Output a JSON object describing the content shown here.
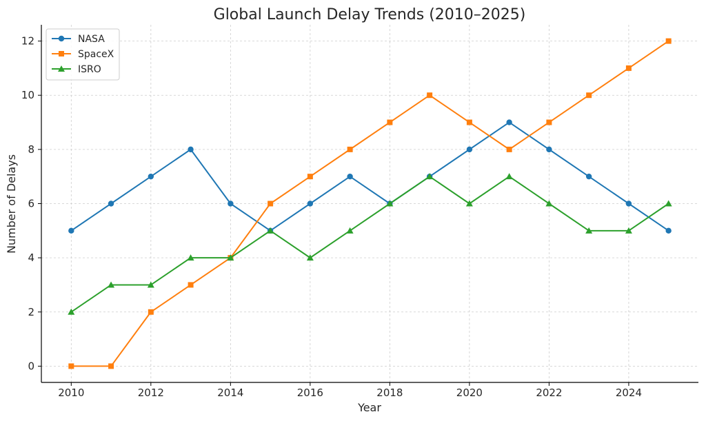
{
  "chart_data": {
    "type": "line",
    "title": "Global Launch Delay Trends (2010–2025)",
    "xlabel": "Year",
    "ylabel": "Number of Delays",
    "x": [
      2010,
      2011,
      2012,
      2013,
      2014,
      2015,
      2016,
      2017,
      2018,
      2019,
      2020,
      2021,
      2022,
      2023,
      2024,
      2025
    ],
    "xlim": [
      2009.25,
      2025.75
    ],
    "ylim": [
      -0.6,
      12.6
    ],
    "xticks": [
      2010,
      2012,
      2014,
      2016,
      2018,
      2020,
      2022,
      2024
    ],
    "yticks": [
      0,
      2,
      4,
      6,
      8,
      10,
      12
    ],
    "grid": true,
    "legend_position": "top-left",
    "series": [
      {
        "name": "NASA",
        "color": "#1f77b4",
        "marker": "circle",
        "values": [
          5,
          6,
          7,
          8,
          6,
          5,
          6,
          7,
          6,
          7,
          8,
          9,
          8,
          7,
          6,
          5
        ]
      },
      {
        "name": "SpaceX",
        "color": "#ff7f0e",
        "marker": "square",
        "values": [
          0,
          0,
          2,
          3,
          4,
          6,
          7,
          8,
          9,
          10,
          9,
          8,
          9,
          10,
          11,
          12
        ]
      },
      {
        "name": "ISRO",
        "color": "#2ca02c",
        "marker": "triangle",
        "values": [
          2,
          3,
          3,
          4,
          4,
          5,
          4,
          5,
          6,
          7,
          6,
          7,
          6,
          5,
          5,
          6
        ]
      }
    ]
  }
}
